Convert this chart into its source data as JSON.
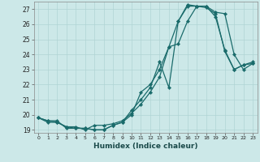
{
  "xlabel": "Humidex (Indice chaleur)",
  "bg_color": "#cce8e8",
  "grid_color": "#b0d4d4",
  "line_color": "#1a6b6b",
  "xlim": [
    -0.5,
    23.5
  ],
  "ylim": [
    18.8,
    27.5
  ],
  "yticks": [
    19,
    20,
    21,
    22,
    23,
    24,
    25,
    26,
    27
  ],
  "xticks": [
    0,
    1,
    2,
    3,
    4,
    5,
    6,
    7,
    8,
    9,
    10,
    11,
    12,
    13,
    14,
    15,
    16,
    17,
    18,
    19,
    20,
    21,
    22,
    23
  ],
  "curve1_x": [
    0,
    1,
    2,
    3,
    4,
    5,
    6,
    7,
    8,
    9,
    10,
    11,
    12,
    13,
    14,
    15,
    16,
    17,
    18,
    19,
    20,
    21,
    22,
    23
  ],
  "curve1_y": [
    19.8,
    19.6,
    19.5,
    19.2,
    19.1,
    19.1,
    19.0,
    19.0,
    19.3,
    19.5,
    20.0,
    21.5,
    22.0,
    23.0,
    24.5,
    26.2,
    27.3,
    27.2,
    27.1,
    26.7,
    24.2,
    23.0,
    23.3,
    23.4
  ],
  "curve2_x": [
    0,
    1,
    2,
    3,
    4,
    5,
    6,
    7,
    8,
    9,
    10,
    11,
    12,
    13,
    14,
    15,
    16,
    17,
    18,
    19,
    20,
    21,
    22,
    23
  ],
  "curve2_y": [
    19.8,
    19.5,
    19.5,
    19.2,
    19.2,
    19.0,
    19.3,
    19.3,
    19.4,
    19.6,
    20.1,
    20.7,
    21.5,
    22.5,
    24.5,
    24.7,
    26.2,
    27.2,
    27.2,
    26.8,
    26.7,
    24.0,
    23.0,
    23.4
  ],
  "curve3_x": [
    0,
    1,
    2,
    3,
    4,
    5,
    6,
    7,
    8,
    9,
    10,
    11,
    12,
    13,
    14,
    15,
    16,
    17,
    18,
    19,
    20,
    21,
    22,
    23
  ],
  "curve3_y": [
    19.8,
    19.6,
    19.6,
    19.1,
    19.1,
    19.1,
    19.0,
    19.0,
    19.3,
    19.5,
    20.3,
    21.0,
    21.8,
    23.5,
    21.8,
    26.2,
    27.2,
    27.2,
    27.2,
    26.5,
    24.3,
    23.0,
    23.3,
    23.5
  ]
}
